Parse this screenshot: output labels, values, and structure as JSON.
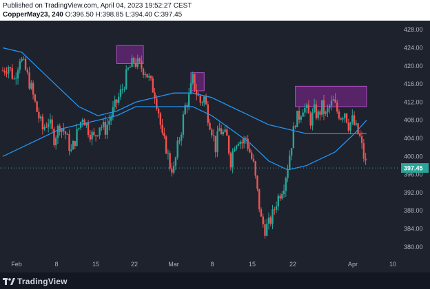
{
  "header": {
    "published": "Published on TradingView.com, April 04, 2023 19:52:27 CEST",
    "symbol": "CopperMay23, 240",
    "ohlc": {
      "o_label": "O:",
      "o": "396.50",
      "h_label": "H:",
      "h": "398.85",
      "l_label": "L:",
      "l": "394.40",
      "c_label": "C:",
      "c": "397.45"
    }
  },
  "footer": {
    "brand": "TradingView",
    "logo_icon": "tradingview-logo-icon"
  },
  "colors": {
    "background": "#1e222d",
    "up": "#26a69a",
    "down": "#ef5350",
    "ma": "#2196f3",
    "box": "#9c27b0",
    "price_line": "#26a69a"
  },
  "chart_data": {
    "type": "candlestick",
    "x_axis": {
      "tick_labels": [
        "Feb",
        "8",
        "15",
        "22",
        "Mar",
        "8",
        "15",
        "22",
        "Apr",
        "10"
      ]
    },
    "y_axis": {
      "range": [
        378,
        430
      ],
      "tick_labels": [
        "428.00",
        "424.00",
        "420.00",
        "416.00",
        "412.00",
        "408.00",
        "404.00",
        "400.00",
        "396.00",
        "392.00",
        "388.00",
        "384.00",
        "380.00"
      ]
    },
    "last_price": 397.45,
    "last_price_label": "397.45",
    "price_path": [
      [
        0,
        419
      ],
      [
        6,
        420
      ],
      [
        12,
        417
      ],
      [
        18,
        422
      ],
      [
        24,
        419
      ],
      [
        30,
        415
      ],
      [
        36,
        410
      ],
      [
        42,
        406
      ],
      [
        48,
        408
      ],
      [
        54,
        404
      ],
      [
        60,
        407
      ],
      [
        66,
        405
      ],
      [
        72,
        401
      ],
      [
        78,
        405
      ],
      [
        84,
        409
      ],
      [
        90,
        406
      ],
      [
        96,
        404
      ],
      [
        102,
        407
      ],
      [
        108,
        406
      ],
      [
        114,
        409
      ],
      [
        120,
        412
      ],
      [
        126,
        415
      ],
      [
        132,
        419
      ],
      [
        138,
        421
      ],
      [
        144,
        420
      ],
      [
        150,
        419
      ],
      [
        156,
        416
      ],
      [
        160,
        414
      ],
      [
        164,
        410
      ],
      [
        168,
        404
      ],
      [
        172,
        402
      ],
      [
        176,
        398
      ],
      [
        180,
        397
      ],
      [
        184,
        402
      ],
      [
        188,
        406
      ],
      [
        192,
        411
      ],
      [
        196,
        413
      ],
      [
        200,
        417
      ],
      [
        204,
        414
      ],
      [
        208,
        412
      ],
      [
        212,
        413
      ],
      [
        216,
        409
      ],
      [
        220,
        406
      ],
      [
        224,
        402
      ],
      [
        228,
        406
      ],
      [
        232,
        405
      ],
      [
        236,
        404
      ],
      [
        240,
        399
      ],
      [
        244,
        403
      ],
      [
        248,
        404
      ],
      [
        252,
        403
      ],
      [
        256,
        404
      ],
      [
        260,
        401
      ],
      [
        264,
        398
      ],
      [
        268,
        392
      ],
      [
        272,
        386
      ],
      [
        276,
        384
      ],
      [
        280,
        385
      ],
      [
        284,
        387
      ],
      [
        288,
        390
      ],
      [
        292,
        392
      ],
      [
        296,
        394
      ],
      [
        300,
        398
      ],
      [
        304,
        403
      ],
      [
        308,
        408
      ],
      [
        312,
        409
      ],
      [
        316,
        411
      ],
      [
        320,
        410
      ],
      [
        324,
        408
      ],
      [
        328,
        410
      ],
      [
        332,
        409
      ],
      [
        336,
        411
      ],
      [
        340,
        409
      ],
      [
        344,
        411
      ],
      [
        348,
        412
      ],
      [
        352,
        410
      ],
      [
        356,
        409
      ],
      [
        360,
        410
      ],
      [
        364,
        407
      ],
      [
        368,
        408
      ],
      [
        372,
        406
      ],
      [
        376,
        404
      ],
      [
        380,
        400
      ],
      [
        383,
        397.45
      ]
    ],
    "moving_averages": [
      {
        "points": [
          [
            0,
            424
          ],
          [
            20,
            423
          ],
          [
            40,
            419
          ],
          [
            60,
            415
          ],
          [
            80,
            411
          ],
          [
            100,
            409
          ],
          [
            120,
            410
          ],
          [
            140,
            412
          ],
          [
            160,
            413
          ],
          [
            180,
            414
          ],
          [
            200,
            414
          ],
          [
            220,
            413
          ],
          [
            240,
            411
          ],
          [
            260,
            409
          ],
          [
            280,
            407
          ],
          [
            300,
            406
          ],
          [
            320,
            405
          ],
          [
            340,
            405
          ],
          [
            360,
            405
          ],
          [
            383,
            405
          ]
        ]
      },
      {
        "points": [
          [
            0,
            400
          ],
          [
            20,
            402
          ],
          [
            40,
            404
          ],
          [
            60,
            406
          ],
          [
            80,
            407
          ],
          [
            100,
            408
          ],
          [
            120,
            409
          ],
          [
            140,
            411
          ],
          [
            160,
            411
          ],
          [
            180,
            411
          ],
          [
            200,
            411
          ],
          [
            220,
            409
          ],
          [
            240,
            406
          ],
          [
            260,
            403
          ],
          [
            280,
            399
          ],
          [
            300,
            397
          ],
          [
            310,
            397.5
          ],
          [
            320,
            398
          ],
          [
            330,
            399
          ],
          [
            340,
            400
          ],
          [
            350,
            401
          ],
          [
            360,
            403
          ],
          [
            370,
            405
          ],
          [
            383,
            408
          ]
        ]
      }
    ],
    "highlight_zones": [
      {
        "x0": 120,
        "x1": 148,
        "y0": 420.5,
        "y1": 424.5
      },
      {
        "x0": 198,
        "x1": 212,
        "y0": 414.5,
        "y1": 418.5
      },
      {
        "x0": 308,
        "x1": 383,
        "y0": 411,
        "y1": 415.5
      }
    ],
    "grid": false,
    "legend": "none"
  }
}
